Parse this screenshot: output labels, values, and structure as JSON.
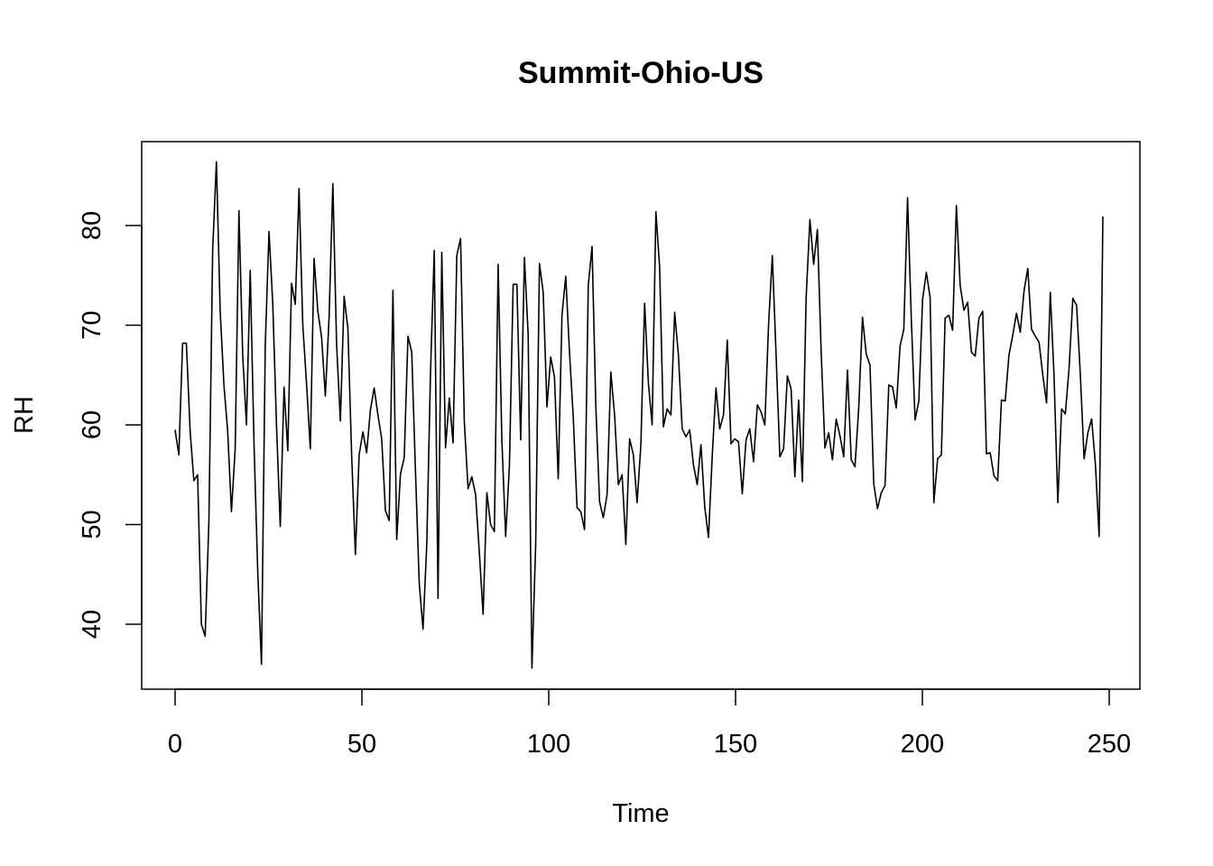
{
  "chart_data": {
    "type": "line",
    "title": "Summit-Ohio-US",
    "xlabel": "Time",
    "ylabel": "RH",
    "xlim": [
      0,
      250
    ],
    "ylim": [
      35,
      85
    ],
    "x_ticks": [
      0,
      50,
      100,
      150,
      200,
      250
    ],
    "y_ticks": [
      40,
      50,
      60,
      70,
      80
    ],
    "grid": false,
    "series": [
      {
        "values": [
          59.5,
          57.0,
          68.2,
          68.2,
          59.4,
          54.4,
          55.0,
          40.0,
          38.8,
          50.3,
          77.5,
          86.4,
          71.5,
          64.0,
          59.4,
          51.3,
          57.6,
          81.5,
          67.0,
          60.0,
          75.5,
          58.3,
          45.3,
          36.0,
          67.9,
          79.4,
          72.2,
          60.0,
          49.8,
          63.8,
          57.4,
          74.2,
          72.1,
          83.7,
          70.0,
          64.1,
          57.6,
          76.7,
          71.4,
          68.8,
          62.9,
          70.8,
          84.2,
          68.0,
          60.4,
          72.9,
          69.7,
          57.0,
          47.0,
          57.0,
          59.3,
          57.2,
          61.5,
          63.7,
          61.0,
          58.6,
          51.4,
          50.4,
          73.5,
          48.5,
          55.1,
          56.7,
          68.9,
          67.3,
          55.3,
          44.1,
          39.5,
          48.0,
          65.3,
          77.5,
          42.6,
          77.3,
          57.7,
          62.7,
          58.2,
          77.0,
          78.7,
          60.3,
          53.6,
          54.8,
          53.0,
          47.2,
          41.0,
          53.2,
          50.0,
          49.3,
          76.1,
          58.4,
          48.8,
          55.8,
          74.1,
          74.1,
          58.5,
          76.8,
          69.0,
          35.6,
          48.0,
          76.2,
          73.3,
          61.8,
          66.8,
          64.8,
          54.6,
          71.0,
          74.9,
          67.3,
          60.8,
          51.7,
          51.3,
          49.5,
          74.0,
          77.9,
          62.0,
          52.3,
          50.7,
          53.0,
          65.3,
          61.0,
          54.0,
          55.0,
          48.0,
          58.6,
          57.0,
          52.2,
          58.0,
          72.2,
          64.2,
          60.0,
          81.4,
          75.8,
          59.8,
          61.6,
          61.0,
          71.3,
          67.0,
          59.6,
          58.8,
          59.5,
          56.0,
          54.0,
          58.0,
          51.8,
          48.7,
          56.9,
          63.7,
          59.6,
          61.0,
          68.5,
          58.1,
          58.6,
          58.3,
          53.1,
          58.5,
          59.6,
          56.3,
          62.0,
          61.3,
          60.0,
          70.1,
          77.0,
          67.0,
          56.8,
          57.6,
          64.9,
          63.6,
          54.8,
          62.5,
          54.3,
          72.8,
          80.6,
          76.1,
          79.6,
          67.3,
          57.7,
          59.2,
          56.5,
          60.6,
          58.9,
          56.8,
          65.5,
          56.5,
          55.8,
          61.7,
          70.8,
          67.1,
          66.0,
          54.1,
          51.6,
          53.2,
          53.9,
          64.0,
          63.8,
          61.7,
          67.9,
          69.6,
          82.8,
          70.6,
          60.5,
          62.4,
          72.6,
          75.3,
          72.8,
          52.2,
          56.6,
          57.0,
          70.7,
          71.0,
          69.5,
          82.0,
          74.0,
          71.5,
          72.3,
          67.3,
          66.9,
          70.7,
          71.4,
          57.1,
          57.2,
          54.9,
          54.4,
          62.5,
          62.4,
          67.0,
          69.0,
          71.2,
          69.3,
          73.4,
          75.7,
          69.6,
          68.9,
          68.3,
          65.0,
          62.2,
          73.3,
          64.9,
          52.2,
          61.6,
          61.1,
          65.7,
          72.7,
          72.0,
          65.0,
          56.6,
          59.2,
          60.6,
          56.1,
          48.8,
          80.9
        ]
      }
    ]
  }
}
